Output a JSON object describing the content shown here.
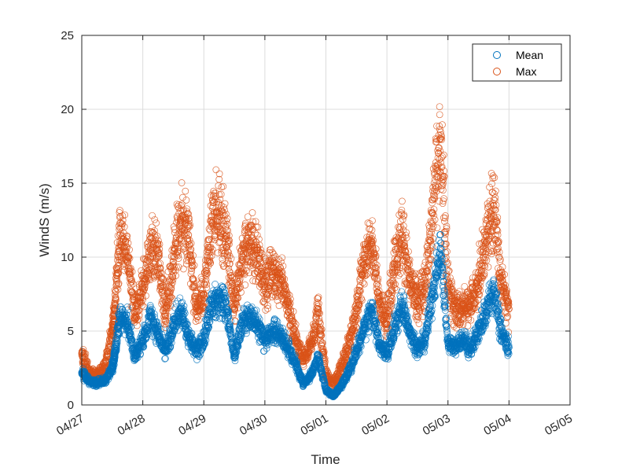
{
  "chart_data": {
    "type": "scatter",
    "title": "",
    "xlabel": "Time",
    "ylabel": "WindS (m/s)",
    "x_ticks": [
      "04/27",
      "04/28",
      "04/29",
      "04/30",
      "05/01",
      "05/02",
      "05/03",
      "05/04",
      "05/05"
    ],
    "y_ticks": [
      "0",
      "5",
      "10",
      "15",
      "20",
      "25"
    ],
    "xlim_days": [
      0,
      8
    ],
    "ylim": [
      0,
      25
    ],
    "grid": true,
    "legend_position": "top-right",
    "marker": "open-circle",
    "colors": {
      "Mean": "#0072BD",
      "Max": "#D95319"
    },
    "series": [
      {
        "name": "Mean",
        "x": [
          "04/27 00:00",
          "04/27 03:00",
          "04/27 06:00",
          "04/27 09:00",
          "04/27 12:00",
          "04/27 13:00",
          "04/27 15:00",
          "04/27 18:00",
          "04/27 21:00",
          "04/28 00:00",
          "04/28 03:00",
          "04/28 06:00",
          "04/28 09:00",
          "04/28 12:00",
          "04/28 15:00",
          "04/28 18:00",
          "04/28 21:00",
          "04/29 00:00",
          "04/29 03:00",
          "04/29 06:00",
          "04/29 09:00",
          "04/29 12:00",
          "04/29 15:00",
          "04/29 18:00",
          "04/29 21:00",
          "04/30 00:00",
          "04/30 03:00",
          "04/30 06:00",
          "04/30 09:00",
          "04/30 12:00",
          "04/30 15:00",
          "04/30 18:00",
          "04/30 21:00",
          "05/01 00:00",
          "05/01 03:00",
          "05/01 06:00",
          "05/01 09:00",
          "05/01 12:00",
          "05/01 15:00",
          "05/01 18:00",
          "05/01 21:00",
          "05/02 00:00",
          "05/02 03:00",
          "05/02 06:00",
          "05/02 09:00",
          "05/02 12:00",
          "05/02 15:00",
          "05/02 18:00",
          "05/02 21:00",
          "05/03 00:00",
          "05/03 03:00",
          "05/03 06:00",
          "05/03 09:00",
          "05/03 12:00",
          "05/03 15:00",
          "05/03 18:00",
          "05/03 21:00",
          "05/04 00:00"
        ],
        "y": [
          2.2,
          1.6,
          1.5,
          1.6,
          2.5,
          3.4,
          6.1,
          5.5,
          3.3,
          4.4,
          6.0,
          4.8,
          3.6,
          5.3,
          6.5,
          4.6,
          3.7,
          4.3,
          6.8,
          7.2,
          6.5,
          3.3,
          5.6,
          6.0,
          5.5,
          4.3,
          5.0,
          4.8,
          3.9,
          2.8,
          1.4,
          2.0,
          3.2,
          1.0,
          0.6,
          1.3,
          2.2,
          3.6,
          5.2,
          6.5,
          4.0,
          3.4,
          5.3,
          6.7,
          4.9,
          3.8,
          4.5,
          7.5,
          10.6,
          4.2,
          4.0,
          4.3,
          3.8,
          5.0,
          6.3,
          7.8,
          4.8,
          3.9
        ]
      },
      {
        "name": "Max",
        "x": [
          "04/27 00:00",
          "04/27 03:00",
          "04/27 06:00",
          "04/27 09:00",
          "04/27 12:00",
          "04/27 13:00",
          "04/27 15:00",
          "04/27 18:00",
          "04/27 21:00",
          "04/28 00:00",
          "04/28 03:00",
          "04/28 06:00",
          "04/28 09:00",
          "04/28 12:00",
          "04/28 15:00",
          "04/28 18:00",
          "04/28 21:00",
          "04/29 00:00",
          "04/29 03:00",
          "04/29 06:00",
          "04/29 09:00",
          "04/29 12:00",
          "04/29 15:00",
          "04/29 18:00",
          "04/29 21:00",
          "04/30 00:00",
          "04/30 03:00",
          "04/30 06:00",
          "04/30 09:00",
          "04/30 12:00",
          "04/30 15:00",
          "04/30 18:00",
          "04/30 21:00",
          "05/01 00:00",
          "05/01 03:00",
          "05/01 06:00",
          "05/01 09:00",
          "05/01 12:00",
          "05/01 15:00",
          "05/01 18:00",
          "05/01 21:00",
          "05/02 00:00",
          "05/02 03:00",
          "05/02 06:00",
          "05/02 09:00",
          "05/02 12:00",
          "05/02 15:00",
          "05/02 18:00",
          "05/02 21:00",
          "05/03 00:00",
          "05/03 03:00",
          "05/03 06:00",
          "05/03 09:00",
          "05/03 12:00",
          "05/03 15:00",
          "05/03 18:00",
          "05/03 21:00",
          "05/04 00:00"
        ],
        "y": [
          3.5,
          2.2,
          2.0,
          2.5,
          5.0,
          6.5,
          11.5,
          10.0,
          6.0,
          8.0,
          10.5,
          10.0,
          6.0,
          9.5,
          12.5,
          11.5,
          6.5,
          7.5,
          12.5,
          13.0,
          11.5,
          6.5,
          10.0,
          11.0,
          10.5,
          8.0,
          9.0,
          8.5,
          7.0,
          4.5,
          3.0,
          4.0,
          6.5,
          2.0,
          1.5,
          2.5,
          4.0,
          6.5,
          9.5,
          11.0,
          7.0,
          5.5,
          9.5,
          11.5,
          8.5,
          7.0,
          8.0,
          13.0,
          18.0,
          8.0,
          6.5,
          6.5,
          7.0,
          8.5,
          11.0,
          13.5,
          8.0,
          6.5
        ]
      }
    ]
  }
}
